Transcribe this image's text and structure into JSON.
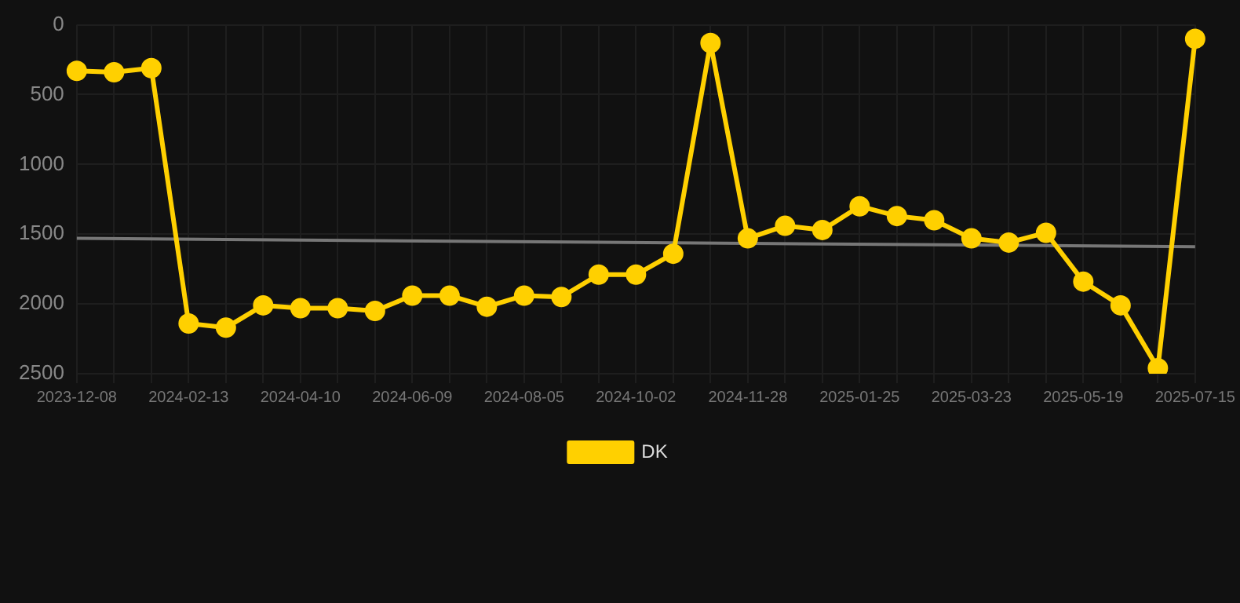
{
  "chart_data": {
    "type": "line",
    "categories": [
      "2023-12-08",
      null,
      null,
      "2024-02-13",
      null,
      null,
      "2024-04-10",
      null,
      null,
      "2024-06-09",
      null,
      null,
      "2024-08-05",
      null,
      null,
      "2024-10-02",
      null,
      null,
      "2024-11-28",
      null,
      null,
      "2025-01-25",
      null,
      null,
      "2025-03-23",
      null,
      null,
      "2025-05-19",
      null,
      null,
      "2025-07-15"
    ],
    "series": [
      {
        "name": "DK",
        "color": "#ffd000",
        "values": [
          330,
          340,
          310,
          2140,
          2170,
          2010,
          2030,
          2030,
          2050,
          1940,
          1940,
          2020,
          1940,
          1950,
          1790,
          1790,
          1640,
          130,
          1530,
          1440,
          1470,
          1300,
          1370,
          1400,
          1530,
          1560,
          1490,
          1840,
          2010,
          2460,
          100
        ]
      },
      {
        "type": "line",
        "color": "#777777",
        "marker": "none",
        "values": [
          1530,
          null,
          null,
          null,
          null,
          null,
          null,
          null,
          null,
          null,
          null,
          null,
          null,
          null,
          null,
          null,
          null,
          null,
          null,
          null,
          null,
          null,
          null,
          null,
          null,
          null,
          null,
          null,
          null,
          null,
          1590
        ]
      }
    ],
    "ylim": [
      2500,
      0
    ],
    "yticks": [
      0,
      500,
      1000,
      1500,
      2000,
      2500
    ],
    "grid": true,
    "legend": "bottom",
    "marker": "circle",
    "line_style": "solid"
  }
}
